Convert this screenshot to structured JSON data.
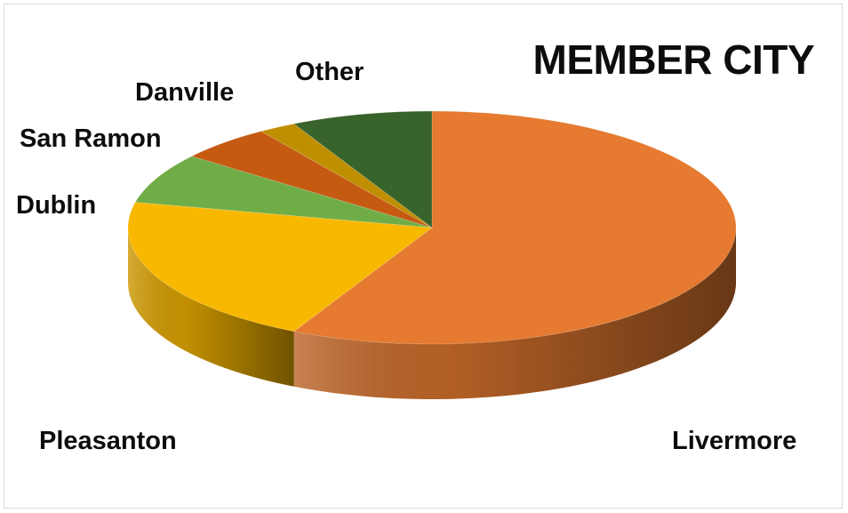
{
  "chart_data": {
    "type": "pie",
    "title": "MEMBER CITY",
    "slices": [
      {
        "label": "Livermore",
        "value": 57.5,
        "color": "#e57a30"
      },
      {
        "label": "Pleasanton",
        "value": 21,
        "color": "#f9b800"
      },
      {
        "label": "Dublin",
        "value": 7,
        "color": "#70ad47"
      },
      {
        "label": "San Ramon",
        "value": 5,
        "color": "#c55a11"
      },
      {
        "label": "Danville",
        "value": 2,
        "color": "#bf8f00"
      },
      {
        "label": "Other",
        "value": 7.5,
        "color": "#38632a"
      }
    ],
    "legend": "none",
    "style": "3d"
  }
}
